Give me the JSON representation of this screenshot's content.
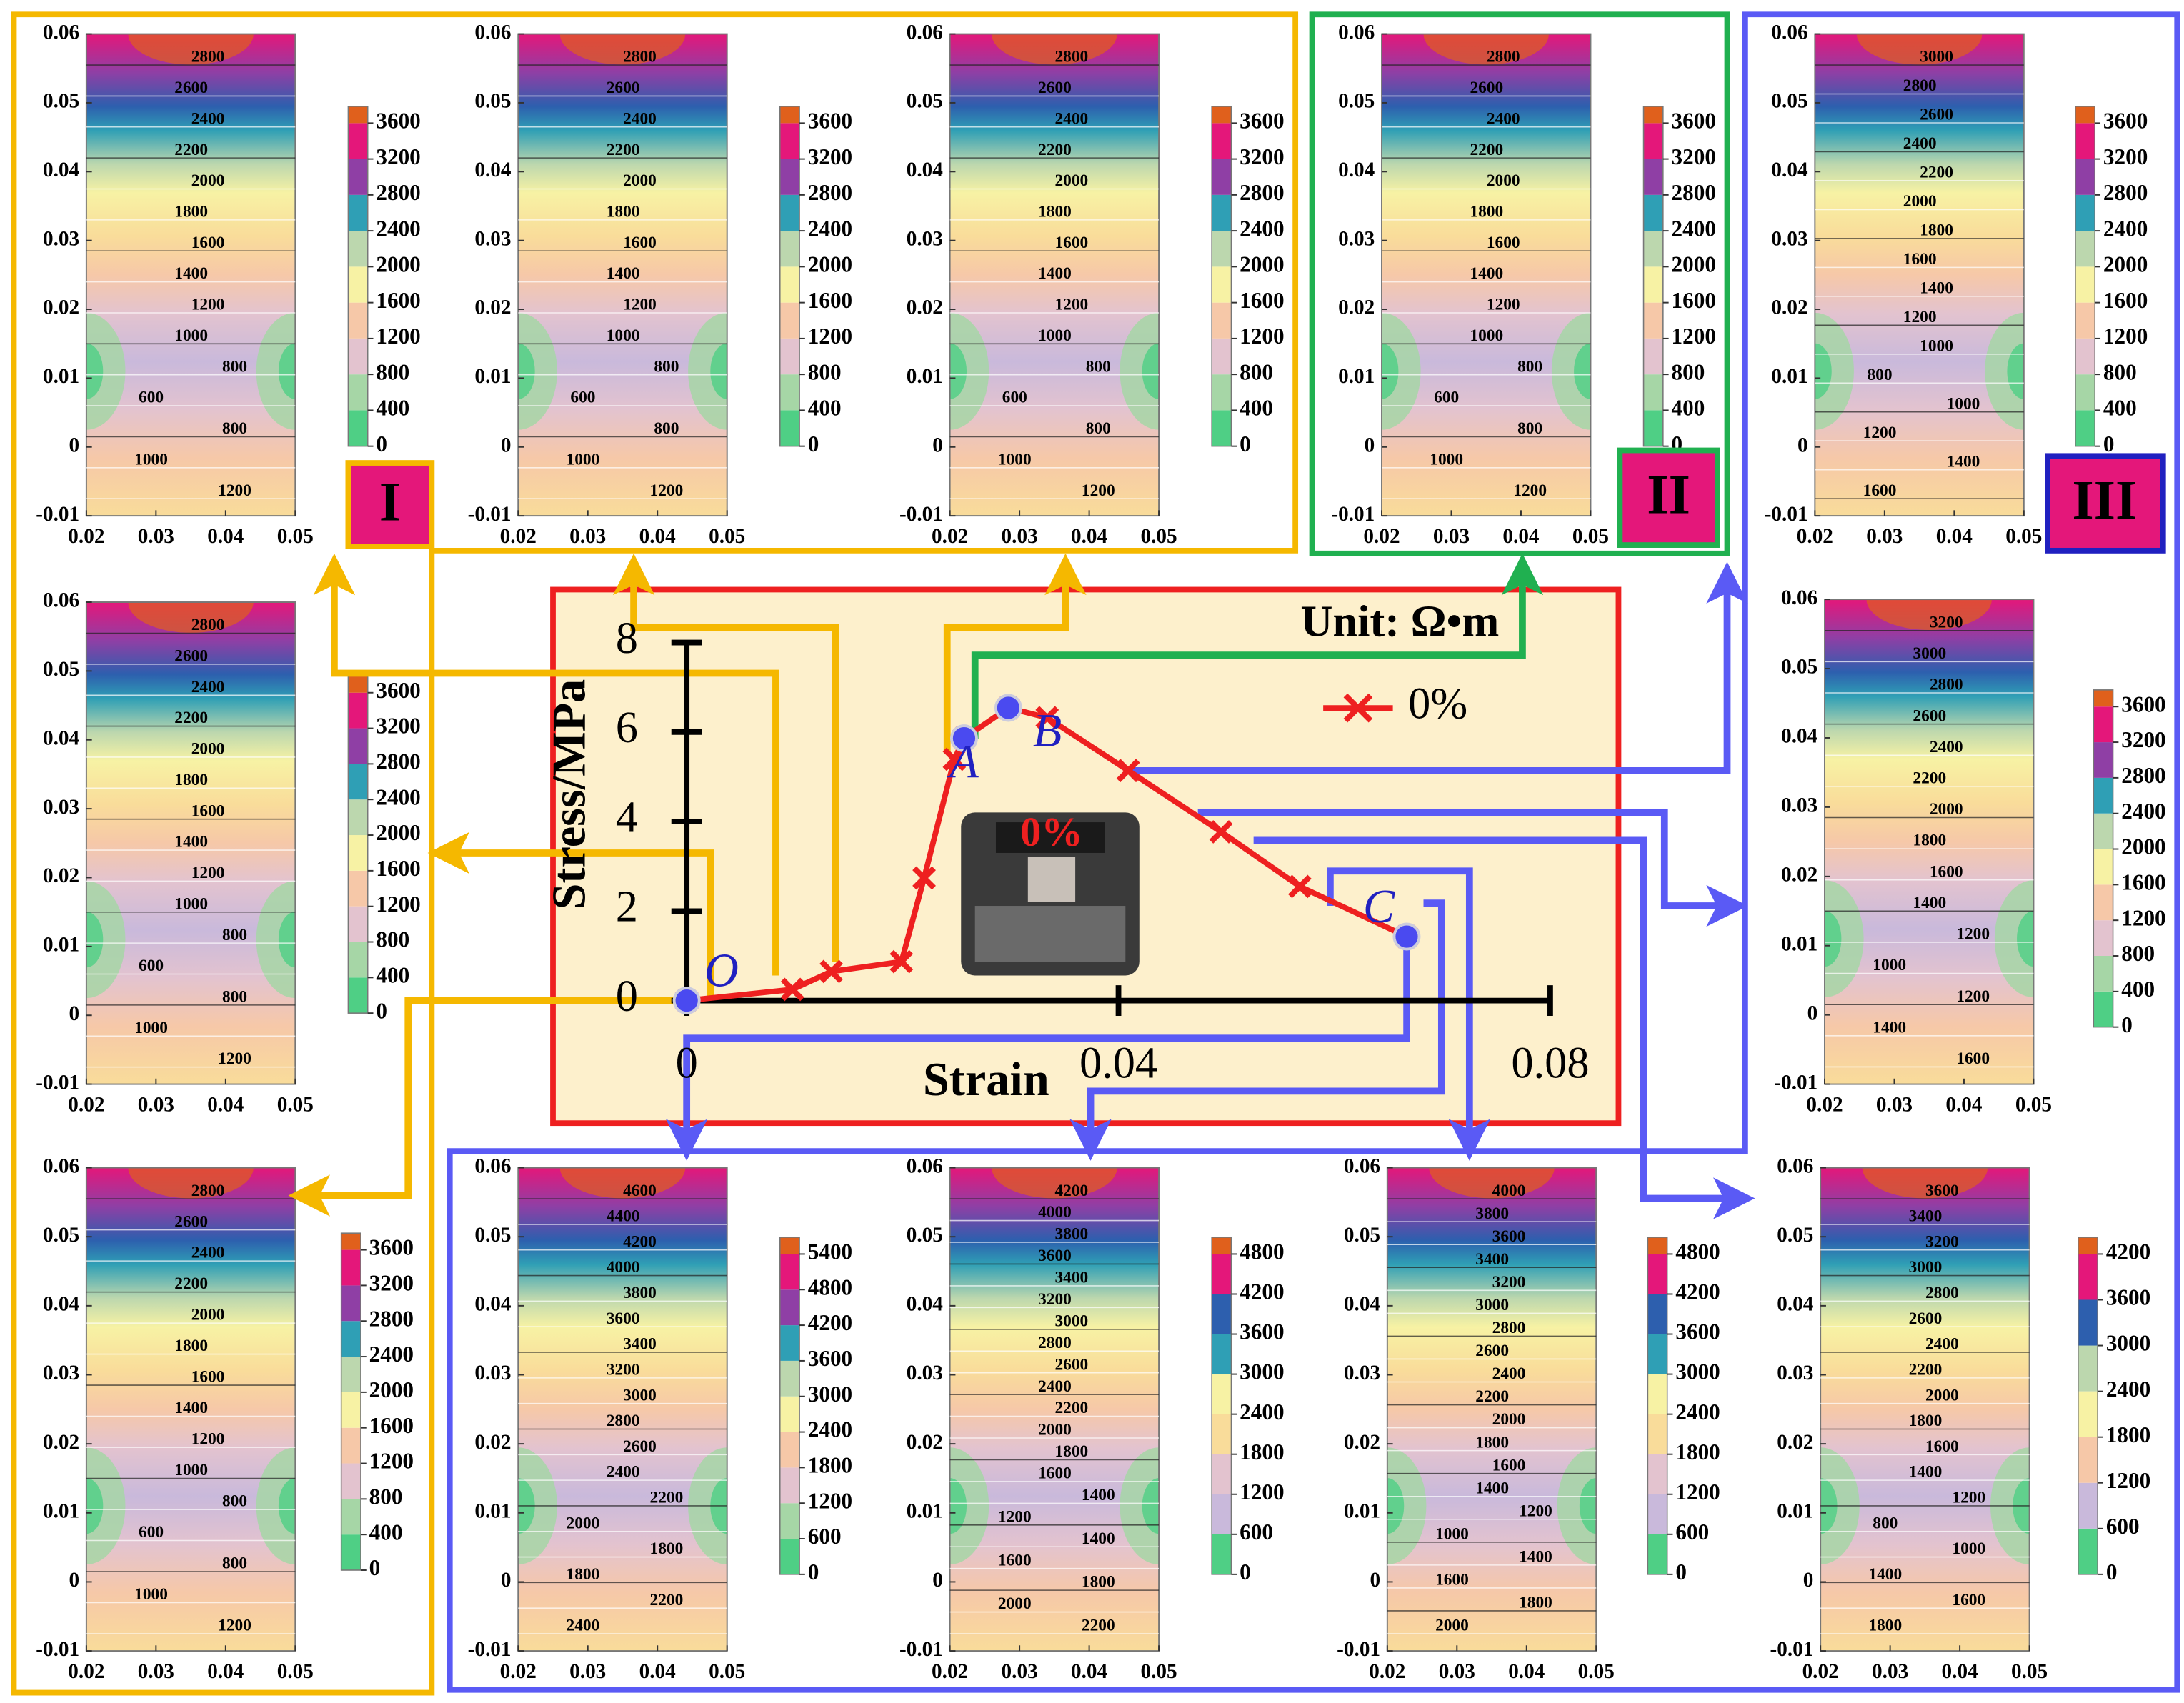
{
  "region_labels": [
    "I",
    "II",
    "III"
  ],
  "chart_data": [
    {
      "type": "line",
      "x_label": "Strain",
      "y_label": "Stress/MPa",
      "unit": "Unit: Ω•m",
      "photo_label": "0%",
      "xlim": [
        0,
        0.08
      ],
      "xticks": [
        0,
        0.04,
        0.08
      ],
      "ylim": [
        0,
        8
      ],
      "yticks": [
        0,
        2,
        4,
        6,
        8
      ],
      "series": [
        {
          "name": "0%",
          "color": "#ee2020",
          "x": [
            0,
            0.0098,
            0.0134,
            0.0199,
            0.022,
            0.0248,
            0.0257,
            0.0298,
            0.0334,
            0.0409,
            0.0495,
            0.0568,
            0.0667
          ],
          "values": [
            0,
            0.25,
            0.65,
            0.87,
            2.74,
            5.39,
            5.86,
            6.54,
            6.32,
            5.14,
            3.77,
            2.55,
            1.43
          ]
        }
      ],
      "key_points": {
        "labels": [
          "O",
          "A",
          "B",
          "C"
        ],
        "x": [
          0,
          0.0257,
          0.0298,
          0.0667
        ],
        "values": [
          0,
          5.86,
          6.54,
          1.43
        ],
        "color": "#4a4af0"
      }
    },
    {
      "type": "contour",
      "xlim": [
        0.02,
        0.05
      ],
      "xticks": [
        0.02,
        0.03,
        0.04,
        0.05
      ],
      "ylim": [
        -0.01,
        0.06
      ],
      "yticks": [
        -0.01,
        0,
        0.01,
        0.02,
        0.03,
        0.04,
        0.05,
        0.06
      ],
      "clim": [
        0,
        3600
      ],
      "cticks": [
        0,
        400,
        800,
        1200,
        1600,
        2000,
        2400,
        2800,
        3200,
        3600
      ],
      "colors": [
        "#4fcf85",
        "#a6d6a6",
        "#c9b9db",
        "#e3c3cf",
        "#f6c8a8",
        "#f9dc9a",
        "#f7f2a4",
        "#bcd7ae",
        "#2f9fb5",
        "#2d5fae",
        "#8f3fa5",
        "#e4177a",
        "#e0601c"
      ],
      "contour_labels": [
        "2800",
        "2600",
        "2400",
        "2200",
        "2000",
        "1800",
        "1600",
        "1400",
        "1200",
        "1000",
        "800",
        "600",
        "800",
        "1000",
        "1200"
      ]
    },
    {
      "type": "contour",
      "xlim": [
        0.02,
        0.05
      ],
      "xticks": [
        0.02,
        0.03,
        0.04,
        0.05
      ],
      "ylim": [
        -0.01,
        0.06
      ],
      "yticks": [
        -0.01,
        0,
        0.01,
        0.02,
        0.03,
        0.04,
        0.05,
        0.06
      ],
      "clim": [
        0,
        3600
      ],
      "cticks": [
        0,
        400,
        800,
        1200,
        1600,
        2000,
        2400,
        2800,
        3200,
        3600
      ],
      "colors": [
        "#4fcf85",
        "#a6d6a6",
        "#c9b9db",
        "#e3c3cf",
        "#f6c8a8",
        "#f9dc9a",
        "#f7f2a4",
        "#bcd7ae",
        "#2f9fb5",
        "#2d5fae",
        "#8f3fa5",
        "#e4177a",
        "#e0601c"
      ],
      "contour_labels": [
        "2800",
        "2600",
        "2400",
        "2200",
        "2000",
        "1800",
        "1600",
        "1400",
        "1200",
        "1000",
        "800",
        "600",
        "800",
        "1000",
        "1200"
      ]
    },
    {
      "type": "contour",
      "xlim": [
        0.02,
        0.05
      ],
      "xticks": [
        0.02,
        0.03,
        0.04,
        0.05
      ],
      "ylim": [
        -0.01,
        0.06
      ],
      "yticks": [
        -0.01,
        0,
        0.01,
        0.02,
        0.03,
        0.04,
        0.05,
        0.06
      ],
      "clim": [
        0,
        3600
      ],
      "cticks": [
        0,
        400,
        800,
        1200,
        1600,
        2000,
        2400,
        2800,
        3200,
        3600
      ],
      "colors": [
        "#4fcf85",
        "#a6d6a6",
        "#c9b9db",
        "#e3c3cf",
        "#f6c8a8",
        "#f9dc9a",
        "#f7f2a4",
        "#bcd7ae",
        "#2f9fb5",
        "#2d5fae",
        "#8f3fa5",
        "#e4177a",
        "#e0601c"
      ],
      "contour_labels": [
        "2800",
        "2600",
        "2400",
        "2200",
        "2000",
        "1800",
        "1600",
        "1400",
        "1200",
        "1000",
        "800",
        "600",
        "800",
        "1000",
        "1200"
      ]
    },
    {
      "type": "contour",
      "xlim": [
        0.02,
        0.05
      ],
      "xticks": [
        0.02,
        0.03,
        0.04,
        0.05
      ],
      "ylim": [
        -0.01,
        0.06
      ],
      "yticks": [
        -0.01,
        0,
        0.01,
        0.02,
        0.03,
        0.04,
        0.05,
        0.06
      ],
      "clim": [
        0,
        3600
      ],
      "cticks": [
        0,
        400,
        800,
        1200,
        1600,
        2000,
        2400,
        2800,
        3200,
        3600
      ],
      "colors": [
        "#4fcf85",
        "#a6d6a6",
        "#c9b9db",
        "#e3c3cf",
        "#f6c8a8",
        "#f9dc9a",
        "#f7f2a4",
        "#bcd7ae",
        "#2f9fb5",
        "#2d5fae",
        "#8f3fa5",
        "#e4177a",
        "#e0601c"
      ],
      "contour_labels": [
        "2800",
        "2600",
        "2400",
        "2200",
        "2000",
        "1800",
        "1600",
        "1400",
        "1200",
        "1000",
        "800",
        "600",
        "800",
        "1000",
        "1200"
      ]
    },
    {
      "type": "contour",
      "xlim": [
        0.02,
        0.05
      ],
      "xticks": [
        0.02,
        0.03,
        0.04,
        0.05
      ],
      "ylim": [
        -0.01,
        0.06
      ],
      "yticks": [
        -0.01,
        0,
        0.01,
        0.02,
        0.03,
        0.04,
        0.05,
        0.06
      ],
      "clim": [
        0,
        3600
      ],
      "cticks": [
        0,
        400,
        800,
        1200,
        1600,
        2000,
        2400,
        2800,
        3200,
        3600
      ],
      "colors": [
        "#4fcf85",
        "#a6d6a6",
        "#c9b9db",
        "#e3c3cf",
        "#f6c8a8",
        "#f9dc9a",
        "#f7f2a4",
        "#bcd7ae",
        "#2f9fb5",
        "#2d5fae",
        "#8f3fa5",
        "#e4177a",
        "#e0601c"
      ],
      "contour_labels": [
        "3000",
        "2800",
        "2600",
        "2400",
        "2200",
        "2000",
        "1800",
        "1600",
        "1400",
        "1200",
        "1000",
        "800",
        "1000",
        "1200",
        "1400",
        "1600"
      ]
    },
    {
      "type": "contour",
      "xlim": [
        0.02,
        0.05
      ],
      "xticks": [
        0.02,
        0.03,
        0.04,
        0.05
      ],
      "ylim": [
        -0.01,
        0.06
      ],
      "yticks": [
        -0.01,
        0,
        0.01,
        0.02,
        0.03,
        0.04,
        0.05,
        0.06
      ],
      "clim": [
        0,
        3600
      ],
      "cticks": [
        0,
        400,
        800,
        1200,
        1600,
        2000,
        2400,
        2800,
        3200,
        3600
      ],
      "colors": [
        "#4fcf85",
        "#a6d6a6",
        "#c9b9db",
        "#e3c3cf",
        "#f6c8a8",
        "#f9dc9a",
        "#f7f2a4",
        "#bcd7ae",
        "#2f9fb5",
        "#2d5fae",
        "#8f3fa5",
        "#e4177a",
        "#e0601c"
      ],
      "contour_labels": [
        "2800",
        "2600",
        "2400",
        "2200",
        "2000",
        "1800",
        "1600",
        "1400",
        "1200",
        "1000",
        "800",
        "600",
        "800",
        "1000",
        "1200"
      ]
    },
    {
      "type": "contour",
      "xlim": [
        0.02,
        0.05
      ],
      "xticks": [
        0.02,
        0.03,
        0.04,
        0.05
      ],
      "ylim": [
        -0.01,
        0.06
      ],
      "yticks": [
        -0.01,
        0,
        0.01,
        0.02,
        0.03,
        0.04,
        0.05,
        0.06
      ],
      "clim": [
        0,
        3600
      ],
      "cticks": [
        0,
        400,
        800,
        1200,
        1600,
        2000,
        2400,
        2800,
        3200,
        3600
      ],
      "colors": [
        "#4fcf85",
        "#a6d6a6",
        "#c9b9db",
        "#e3c3cf",
        "#f6c8a8",
        "#f9dc9a",
        "#f7f2a4",
        "#bcd7ae",
        "#2f9fb5",
        "#2d5fae",
        "#8f3fa5",
        "#e4177a",
        "#e0601c"
      ],
      "contour_labels": [
        "3200",
        "3000",
        "2800",
        "2600",
        "2400",
        "2200",
        "2000",
        "1800",
        "1600",
        "1400",
        "1200",
        "1000",
        "1200",
        "1400",
        "1600"
      ]
    },
    {
      "type": "contour",
      "xlim": [
        0.02,
        0.05
      ],
      "xticks": [
        0.02,
        0.03,
        0.04,
        0.05
      ],
      "ylim": [
        -0.01,
        0.06
      ],
      "yticks": [
        -0.01,
        0,
        0.01,
        0.02,
        0.03,
        0.04,
        0.05,
        0.06
      ],
      "clim": [
        0,
        3600
      ],
      "cticks": [
        0,
        400,
        800,
        1200,
        1600,
        2000,
        2400,
        2800,
        3200,
        3600
      ],
      "colors": [
        "#4fcf85",
        "#a6d6a6",
        "#c9b9db",
        "#e3c3cf",
        "#f6c8a8",
        "#f9dc9a",
        "#f7f2a4",
        "#bcd7ae",
        "#2f9fb5",
        "#2d5fae",
        "#8f3fa5",
        "#e4177a",
        "#e0601c"
      ],
      "contour_labels": [
        "2800",
        "2600",
        "2400",
        "2200",
        "2000",
        "1800",
        "1600",
        "1400",
        "1200",
        "1000",
        "800",
        "600",
        "800",
        "1000",
        "1200"
      ]
    },
    {
      "type": "contour",
      "xlim": [
        0.02,
        0.05
      ],
      "xticks": [
        0.02,
        0.03,
        0.04,
        0.05
      ],
      "ylim": [
        -0.01,
        0.06
      ],
      "yticks": [
        -0.01,
        0,
        0.01,
        0.02,
        0.03,
        0.04,
        0.05,
        0.06
      ],
      "clim": [
        0,
        5400
      ],
      "cticks": [
        0,
        600,
        1200,
        1800,
        2400,
        3000,
        3600,
        4200,
        4800,
        5400
      ],
      "colors": [
        "#4fcf85",
        "#a6d6a6",
        "#c9b9db",
        "#e3c3cf",
        "#f6c8a8",
        "#f9dc9a",
        "#f7f2a4",
        "#bcd7ae",
        "#2f9fb5",
        "#2d5fae",
        "#8f3fa5",
        "#e4177a",
        "#e0601c"
      ],
      "contour_labels": [
        "4600",
        "4400",
        "4200",
        "4000",
        "3800",
        "3600",
        "3400",
        "3200",
        "3000",
        "2800",
        "2600",
        "2400",
        "2200",
        "2000",
        "1800",
        "1800",
        "2200",
        "2400"
      ]
    },
    {
      "type": "contour",
      "xlim": [
        0.02,
        0.05
      ],
      "xticks": [
        0.02,
        0.03,
        0.04,
        0.05
      ],
      "ylim": [
        -0.01,
        0.06
      ],
      "yticks": [
        -0.01,
        0,
        0.01,
        0.02,
        0.03,
        0.04,
        0.05,
        0.06
      ],
      "clim": [
        0,
        4800
      ],
      "cticks": [
        0,
        600,
        1200,
        1800,
        2400,
        3000,
        3600,
        4200,
        4800
      ],
      "colors": [
        "#4fcf85",
        "#a6d6a6",
        "#c9b9db",
        "#e3c3cf",
        "#f6c8a8",
        "#f9dc9a",
        "#f7f2a4",
        "#bcd7ae",
        "#2f9fb5",
        "#2d5fae",
        "#8f3fa5",
        "#e4177a",
        "#e0601c"
      ],
      "contour_labels": [
        "4200",
        "4000",
        "3800",
        "3600",
        "3400",
        "3200",
        "3000",
        "2800",
        "2600",
        "2400",
        "2200",
        "2000",
        "1800",
        "1600",
        "1400",
        "1200",
        "1400",
        "1600",
        "1800",
        "2000",
        "2200"
      ]
    },
    {
      "type": "contour",
      "xlim": [
        0.02,
        0.05
      ],
      "xticks": [
        0.02,
        0.03,
        0.04,
        0.05
      ],
      "ylim": [
        -0.01,
        0.06
      ],
      "yticks": [
        -0.01,
        0,
        0.01,
        0.02,
        0.03,
        0.04,
        0.05,
        0.06
      ],
      "clim": [
        0,
        4800
      ],
      "cticks": [
        0,
        600,
        1200,
        1800,
        2400,
        3000,
        3600,
        4200,
        4800
      ],
      "colors": [
        "#4fcf85",
        "#a6d6a6",
        "#c9b9db",
        "#e3c3cf",
        "#f6c8a8",
        "#f9dc9a",
        "#f7f2a4",
        "#bcd7ae",
        "#2f9fb5",
        "#2d5fae",
        "#8f3fa5",
        "#e4177a",
        "#e0601c"
      ],
      "contour_labels": [
        "4000",
        "3800",
        "3600",
        "3400",
        "3200",
        "3000",
        "2800",
        "2600",
        "2400",
        "2200",
        "2000",
        "1800",
        "1600",
        "1400",
        "1200",
        "1000",
        "1400",
        "1600",
        "1800",
        "2000"
      ]
    },
    {
      "type": "contour",
      "xlim": [
        0.02,
        0.05
      ],
      "xticks": [
        0.02,
        0.03,
        0.04,
        0.05
      ],
      "ylim": [
        -0.01,
        0.06
      ],
      "yticks": [
        -0.01,
        0,
        0.01,
        0.02,
        0.03,
        0.04,
        0.05,
        0.06
      ],
      "clim": [
        0,
        4200
      ],
      "cticks": [
        0,
        600,
        1200,
        1800,
        2400,
        3000,
        3600,
        4200
      ],
      "colors": [
        "#4fcf85",
        "#a6d6a6",
        "#c9b9db",
        "#e3c3cf",
        "#f6c8a8",
        "#f9dc9a",
        "#f7f2a4",
        "#bcd7ae",
        "#2f9fb5",
        "#2d5fae",
        "#8f3fa5",
        "#e4177a",
        "#e0601c"
      ],
      "contour_labels": [
        "3600",
        "3400",
        "3200",
        "3000",
        "2800",
        "2600",
        "2400",
        "2200",
        "2000",
        "1800",
        "1600",
        "1400",
        "1200",
        "800",
        "1000",
        "1400",
        "1600",
        "1800"
      ]
    }
  ]
}
